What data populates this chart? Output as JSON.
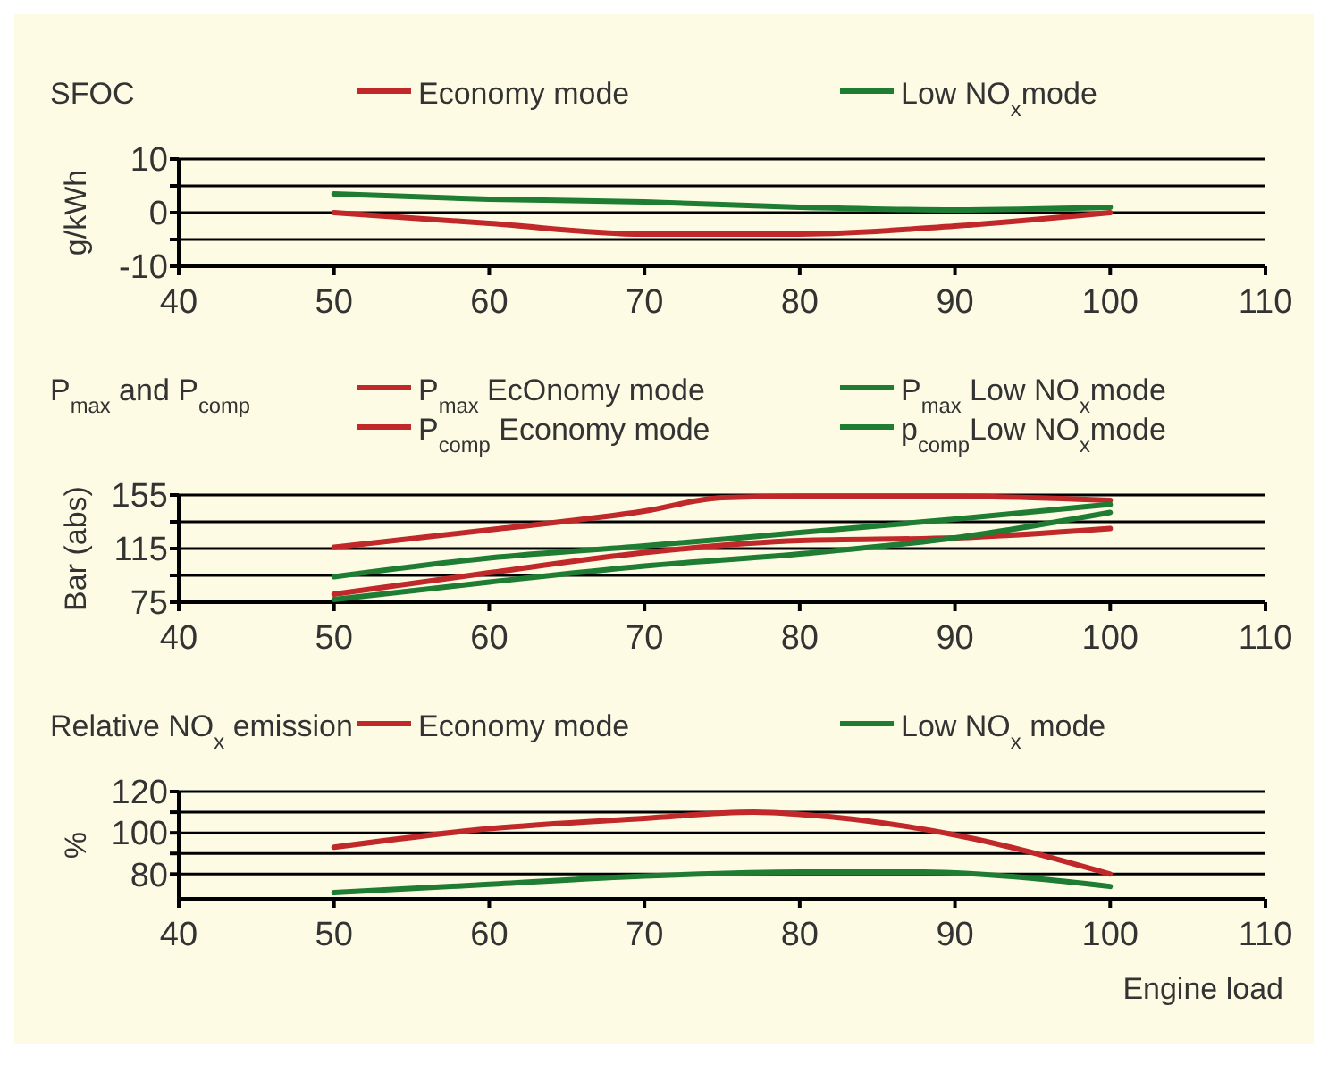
{
  "chart_data": [
    {
      "type": "line",
      "title": "SFOC",
      "ylabel": "g/kWh",
      "xlim": [
        40,
        110
      ],
      "xticks": [
        40,
        50,
        60,
        70,
        80,
        90,
        100,
        110
      ],
      "ylim": [
        -10,
        10
      ],
      "yticks": [
        -10,
        {
          "value": -5,
          "label": null
        },
        0,
        {
          "value": 5,
          "label": null
        },
        10
      ],
      "grid": "y",
      "legend": "top",
      "x": [
        50,
        60,
        70,
        80,
        90,
        100
      ],
      "series": [
        {
          "name": "Economy  mode",
          "color": "#c0282a",
          "values": [
            0,
            -2,
            -4,
            -4,
            -2.5,
            0
          ]
        },
        {
          "name": "Low NO$_{x}$mode",
          "color": "#1e7d32",
          "values": [
            3.5,
            2.5,
            2,
            1,
            0.5,
            1
          ]
        }
      ]
    },
    {
      "type": "line",
      "title": "P$_{max}$ and P$_{comp}$",
      "ylabel": "Bar (abs)",
      "xlim": [
        40,
        110
      ],
      "xticks": [
        40,
        50,
        60,
        70,
        80,
        90,
        100,
        110
      ],
      "ylim": [
        75,
        155
      ],
      "yticks": [
        75,
        {
          "value": 95,
          "label": null
        },
        115,
        {
          "value": 135,
          "label": null
        },
        155
      ],
      "grid": "y",
      "legend": "top",
      "series": [
        {
          "name": "P$_{max}$  EcOnomy mode",
          "color": "#c0282a",
          "x": [
            50,
            60,
            70,
            75,
            80,
            90,
            100
          ],
          "values": [
            116,
            129,
            143,
            153,
            154,
            154,
            151
          ]
        },
        {
          "name": "P$_{comp}$ Economy mode",
          "color": "#c0282a",
          "x": [
            50,
            60,
            70,
            80,
            90,
            100
          ],
          "values": [
            81,
            97,
            112,
            121,
            123,
            130
          ]
        },
        {
          "name": "P$_{max}$ Low NO$_{x}$mode",
          "color": "#1e7d32",
          "x": [
            50,
            60,
            70,
            80,
            90,
            100
          ],
          "values": [
            94,
            108,
            117,
            127,
            137,
            148
          ]
        },
        {
          "name": "p$_{comp}$Low NO$_{x}$mode",
          "color": "#1e7d32",
          "x": [
            50,
            60,
            70,
            80,
            90,
            100
          ],
          "values": [
            77,
            90,
            102,
            111,
            123,
            142
          ]
        }
      ]
    },
    {
      "type": "line",
      "title": "Relative  NO$_{x}$ emission",
      "ylabel": "%",
      "xlabel": "Engine load",
      "xlim": [
        40,
        110
      ],
      "xticks": [
        40,
        50,
        60,
        70,
        80,
        90,
        100,
        110
      ],
      "ylim": [
        68,
        120
      ],
      "yticks": [
        80,
        {
          "value": 90,
          "label": null
        },
        100,
        {
          "value": 110,
          "label": null
        },
        120
      ],
      "grid": "y",
      "legend": "top",
      "series": [
        {
          "name": "Economy mode",
          "color": "#c0282a",
          "x": [
            50,
            60,
            70,
            77,
            80,
            90,
            100
          ],
          "values": [
            93,
            102,
            107,
            110,
            109,
            99,
            80
          ]
        },
        {
          "name": "Low NO$_{x}$ mode",
          "color": "#1e7d32",
          "x": [
            50,
            60,
            70,
            80,
            88,
            95,
            100
          ],
          "values": [
            71,
            75,
            79,
            81,
            81,
            78,
            74
          ]
        }
      ]
    }
  ]
}
